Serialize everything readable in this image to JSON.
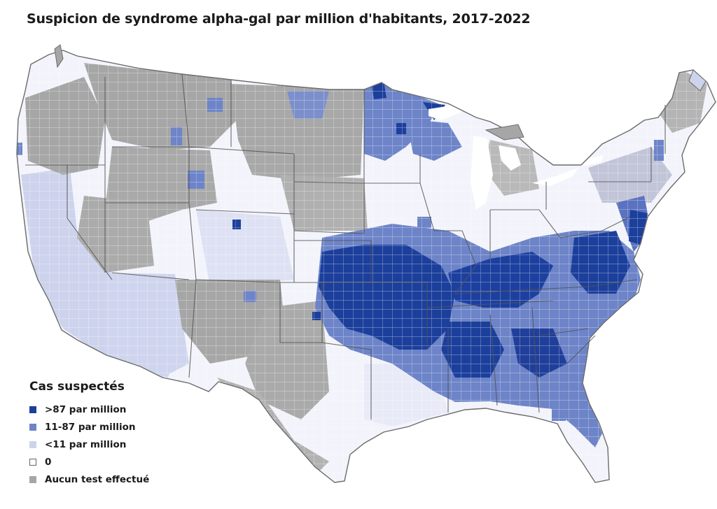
{
  "title": "Suspicion de syndrome alpha-gal par million d'habitants, 2017-2022",
  "legend": {
    "title": "Cas suspectés",
    "items": [
      {
        "label": ">87 par million",
        "color": "#1c3f9c"
      },
      {
        "label": "11-87 par million",
        "color": "#6d84c8"
      },
      {
        "label": "<11 par million",
        "color": "#cdd3ec"
      },
      {
        "label": "0",
        "color": "#ffffff"
      },
      {
        "label": "Aucun test effectué",
        "color": "#a6a6a6"
      }
    ]
  }
}
